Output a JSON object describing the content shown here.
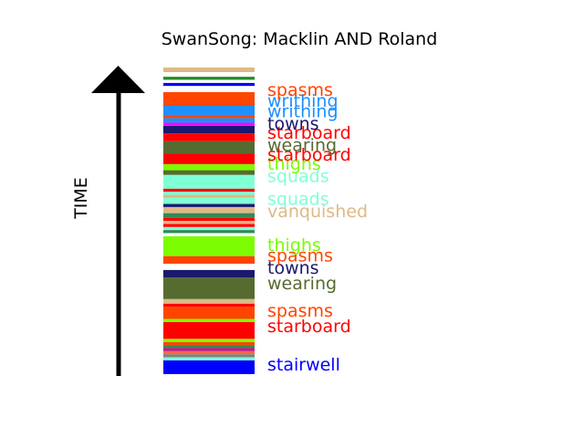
{
  "chart_data": {
    "type": "stacked-timeline",
    "title": "SwanSong: Macklin AND Roland",
    "ylabel": "TIME",
    "ylim": [
      0,
      100
    ],
    "stripes": [
      {
        "from": 0.0,
        "to": 4.5,
        "color": "#0000ff"
      },
      {
        "from": 4.5,
        "to": 5.5,
        "color": "#7fffd4"
      },
      {
        "from": 5.5,
        "to": 6.5,
        "color": "#808080"
      },
      {
        "from": 6.5,
        "to": 7.5,
        "color": "#ff6347"
      },
      {
        "from": 7.5,
        "to": 8.5,
        "color": "#c71585"
      },
      {
        "from": 8.5,
        "to": 9.5,
        "color": "#2e8b57"
      },
      {
        "from": 9.5,
        "to": 10.5,
        "color": "#ff4500"
      },
      {
        "from": 10.5,
        "to": 11.5,
        "color": "#7cfc00"
      },
      {
        "from": 11.5,
        "to": 12.5,
        "color": "#ff0000"
      },
      {
        "from": 12.5,
        "to": 17.0,
        "color": "#ff0000"
      },
      {
        "from": 17.0,
        "to": 18.0,
        "color": "#7cfc00"
      },
      {
        "from": 18.0,
        "to": 22.0,
        "color": "#ff4500"
      },
      {
        "from": 22.0,
        "to": 23.0,
        "color": "#ff0000"
      },
      {
        "from": 23.0,
        "to": 24.5,
        "color": "#deb887"
      },
      {
        "from": 24.5,
        "to": 31.5,
        "color": "#556b2f"
      },
      {
        "from": 31.5,
        "to": 34.0,
        "color": "#191970"
      },
      {
        "from": 34.0,
        "to": 36.0,
        "color": "#ffffff"
      },
      {
        "from": 36.0,
        "to": 38.5,
        "color": "#ff4500"
      },
      {
        "from": 38.5,
        "to": 45.0,
        "color": "#7cfc00"
      },
      {
        "from": 45.0,
        "to": 46.0,
        "color": "#ffffff"
      },
      {
        "from": 46.0,
        "to": 47.0,
        "color": "#2e8b57"
      },
      {
        "from": 47.0,
        "to": 48.0,
        "color": "#7fffd4"
      },
      {
        "from": 48.0,
        "to": 49.0,
        "color": "#ff0000"
      },
      {
        "from": 49.0,
        "to": 50.0,
        "color": "#deb887"
      },
      {
        "from": 50.0,
        "to": 51.0,
        "color": "#ff0000"
      },
      {
        "from": 51.0,
        "to": 52.5,
        "color": "#2e8b57"
      },
      {
        "from": 52.5,
        "to": 54.5,
        "color": "#deb887"
      },
      {
        "from": 54.5,
        "to": 55.5,
        "color": "#191970"
      },
      {
        "from": 55.5,
        "to": 57.5,
        "color": "#7fffd4"
      },
      {
        "from": 57.5,
        "to": 58.5,
        "color": "#deb887"
      },
      {
        "from": 58.5,
        "to": 59.5,
        "color": "#7fffd4"
      },
      {
        "from": 59.5,
        "to": 60.5,
        "color": "#ff0000"
      },
      {
        "from": 60.5,
        "to": 61.5,
        "color": "#7fffd4"
      },
      {
        "from": 61.5,
        "to": 65.0,
        "color": "#7fffd4"
      },
      {
        "from": 65.0,
        "to": 66.5,
        "color": "#556b2f"
      },
      {
        "from": 66.5,
        "to": 68.5,
        "color": "#7cfc00"
      },
      {
        "from": 68.5,
        "to": 72.0,
        "color": "#ff0000"
      },
      {
        "from": 72.0,
        "to": 76.0,
        "color": "#556b2f"
      },
      {
        "from": 76.0,
        "to": 78.5,
        "color": "#ff0000"
      },
      {
        "from": 78.5,
        "to": 81.0,
        "color": "#191970"
      },
      {
        "from": 81.0,
        "to": 82.0,
        "color": "#ff00ff"
      },
      {
        "from": 82.0,
        "to": 83.5,
        "color": "#1e90ff"
      },
      {
        "from": 83.5,
        "to": 84.5,
        "color": "#ff4500"
      },
      {
        "from": 84.5,
        "to": 87.5,
        "color": "#1e90ff"
      },
      {
        "from": 87.5,
        "to": 92.0,
        "color": "#ff4500"
      },
      {
        "from": 92.0,
        "to": 94.0,
        "color": "#ffffff"
      },
      {
        "from": 94.0,
        "to": 95.0,
        "color": "#0000ff"
      },
      {
        "from": 95.0,
        "to": 96.0,
        "color": "#ffffff"
      },
      {
        "from": 96.0,
        "to": 97.0,
        "color": "#228b22"
      },
      {
        "from": 97.0,
        "to": 98.5,
        "color": "#ffffff"
      },
      {
        "from": 98.5,
        "to": 100.0,
        "color": "#deb887"
      }
    ],
    "labels": [
      {
        "text": "stairwell",
        "t": 3.0,
        "color": "#0000ff"
      },
      {
        "text": "starboard",
        "t": 15.5,
        "color": "#ff0000"
      },
      {
        "text": "spasms",
        "t": 20.5,
        "color": "#ff4500"
      },
      {
        "text": "wearing",
        "t": 29.5,
        "color": "#556b2f"
      },
      {
        "text": "towns",
        "t": 34.5,
        "color": "#191970"
      },
      {
        "text": "spasms",
        "t": 38.5,
        "color": "#ff4500"
      },
      {
        "text": "thighs",
        "t": 42.0,
        "color": "#7cfc00"
      },
      {
        "text": "vanquished",
        "t": 53.0,
        "color": "#deb887"
      },
      {
        "text": "squads",
        "t": 57.0,
        "color": "#7fffd4"
      },
      {
        "text": "squads",
        "t": 64.5,
        "color": "#7fffd4"
      },
      {
        "text": "thighs",
        "t": 68.5,
        "color": "#7cfc00"
      },
      {
        "text": "starboard",
        "t": 71.5,
        "color": "#ff0000"
      },
      {
        "text": "wearing",
        "t": 74.5,
        "color": "#556b2f"
      },
      {
        "text": "starboard",
        "t": 78.5,
        "color": "#ff0000"
      },
      {
        "text": "towns",
        "t": 81.5,
        "color": "#191970"
      },
      {
        "text": "writhing",
        "t": 85.5,
        "color": "#1e90ff"
      },
      {
        "text": "writhing",
        "t": 89.0,
        "color": "#1e90ff"
      },
      {
        "text": "spasms",
        "t": 92.5,
        "color": "#ff4500"
      }
    ]
  }
}
